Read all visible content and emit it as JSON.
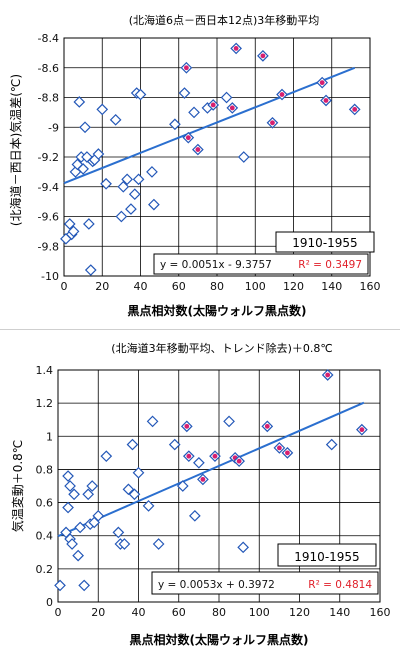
{
  "colors": {
    "marker": "#2458b8",
    "trend": "#2b6fcf",
    "highlight": "#d61f6f",
    "r2": "#e0202a",
    "grid": "#000000"
  },
  "chart_data": [
    {
      "type": "scatter",
      "title": "(北海道6点－西日本12点)3年移動平均",
      "xlabel": "黒点相対数(太陽ウォルフ黒点数)",
      "ylabel": "(北海道－西日本)気温差(℃)",
      "xlim": [
        0,
        160
      ],
      "ylim": [
        -10,
        -8.4
      ],
      "xticks": [
        0,
        20,
        40,
        60,
        80,
        100,
        120,
        140,
        160
      ],
      "yticks": [
        -10,
        -9.8,
        -9.6,
        -9.4,
        -9.2,
        -9,
        -8.8,
        -8.6,
        -8.4
      ],
      "grid": true,
      "period": "1910-1955",
      "equation": "y = 0.0051x - 9.3757",
      "r2": "R² = 0.3497",
      "trend": {
        "slope": 0.0051,
        "intercept": -9.3757
      },
      "points": [
        [
          1,
          -9.75
        ],
        [
          3,
          -9.65
        ],
        [
          4,
          -9.72
        ],
        [
          5,
          -9.7
        ],
        [
          6,
          -9.3
        ],
        [
          7,
          -9.25
        ],
        [
          8,
          -8.83
        ],
        [
          9,
          -9.2
        ],
        [
          10,
          -9.28
        ],
        [
          11,
          -9.0
        ],
        [
          12,
          -9.2
        ],
        [
          13,
          -9.65
        ],
        [
          14,
          -9.96
        ],
        [
          15,
          -9.23
        ],
        [
          16,
          -9.22
        ],
        [
          18,
          -9.18
        ],
        [
          20,
          -8.88
        ],
        [
          22,
          -9.38
        ],
        [
          27,
          -8.95
        ],
        [
          30,
          -9.6
        ],
        [
          31,
          -9.4
        ],
        [
          33,
          -9.35
        ],
        [
          35,
          -9.55
        ],
        [
          37,
          -9.45
        ],
        [
          38,
          -8.77
        ],
        [
          39,
          -9.35
        ],
        [
          40,
          -8.78
        ],
        [
          46,
          -9.3
        ],
        [
          47,
          -9.52
        ],
        [
          58,
          -8.98
        ],
        [
          63,
          -8.77
        ],
        [
          64,
          -8.6
        ],
        [
          65,
          -9.07
        ],
        [
          68,
          -8.9
        ],
        [
          70,
          -9.15
        ],
        [
          75,
          -8.87
        ],
        [
          78,
          -8.85
        ],
        [
          85,
          -8.8
        ],
        [
          88,
          -8.87
        ],
        [
          90,
          -8.47
        ],
        [
          94,
          -9.2
        ],
        [
          104,
          -8.52
        ],
        [
          109,
          -8.97
        ],
        [
          114,
          -8.78
        ],
        [
          135,
          -8.7
        ],
        [
          137,
          -8.82
        ],
        [
          152,
          -8.88
        ]
      ],
      "highlighted_x": [
        64,
        65,
        70,
        78,
        88,
        90,
        104,
        109,
        114,
        135,
        137,
        152
      ]
    },
    {
      "type": "scatter",
      "title": "(北海道3年移動平均、トレンド除去)＋0.8℃",
      "xlabel": "黒点相対数(太陽ウォルフ黒点数)",
      "ylabel": "気温変動＋0.8℃",
      "xlim": [
        0,
        160
      ],
      "ylim": [
        0,
        1.4
      ],
      "xticks": [
        0,
        20,
        40,
        60,
        80,
        100,
        120,
        140,
        160
      ],
      "yticks": [
        0,
        0.2,
        0.4,
        0.6,
        0.8,
        1,
        1.2,
        1.4
      ],
      "ytick_labels": [
        "0",
        "0.2",
        "0.4",
        "0.6",
        "0.8",
        "1",
        "1.2",
        "1.4"
      ],
      "grid": true,
      "period": "1910-1955",
      "equation": "y = 0.0053x + 0.3972",
      "r2": "R² = 0.4814",
      "trend": {
        "slope": 0.0053,
        "intercept": 0.3972
      },
      "points": [
        [
          1,
          0.1
        ],
        [
          4,
          0.42
        ],
        [
          5,
          0.76
        ],
        [
          5,
          0.57
        ],
        [
          6,
          0.7
        ],
        [
          6,
          0.38
        ],
        [
          7,
          0.35
        ],
        [
          8,
          0.65
        ],
        [
          10,
          0.28
        ],
        [
          11,
          0.45
        ],
        [
          13,
          0.1
        ],
        [
          15,
          0.65
        ],
        [
          16,
          0.47
        ],
        [
          17,
          0.7
        ],
        [
          18,
          0.48
        ],
        [
          20,
          0.52
        ],
        [
          24,
          0.88
        ],
        [
          30,
          0.42
        ],
        [
          31,
          0.35
        ],
        [
          33,
          0.35
        ],
        [
          35,
          0.68
        ],
        [
          37,
          0.95
        ],
        [
          38,
          0.65
        ],
        [
          40,
          0.78
        ],
        [
          45,
          0.58
        ],
        [
          47,
          1.09
        ],
        [
          50,
          0.35
        ],
        [
          58,
          0.95
        ],
        [
          62,
          0.7
        ],
        [
          64,
          1.06
        ],
        [
          65,
          0.88
        ],
        [
          68,
          0.52
        ],
        [
          70,
          0.84
        ],
        [
          72,
          0.74
        ],
        [
          78,
          0.88
        ],
        [
          85,
          1.09
        ],
        [
          88,
          0.87
        ],
        [
          90,
          0.85
        ],
        [
          92,
          0.33
        ],
        [
          104,
          1.06
        ],
        [
          110,
          0.93
        ],
        [
          114,
          0.9
        ],
        [
          134,
          1.37
        ],
        [
          136,
          0.95
        ],
        [
          151,
          1.04
        ]
      ],
      "highlighted_x": [
        64,
        65,
        72,
        78,
        88,
        90,
        104,
        110,
        114,
        134,
        151
      ]
    }
  ]
}
